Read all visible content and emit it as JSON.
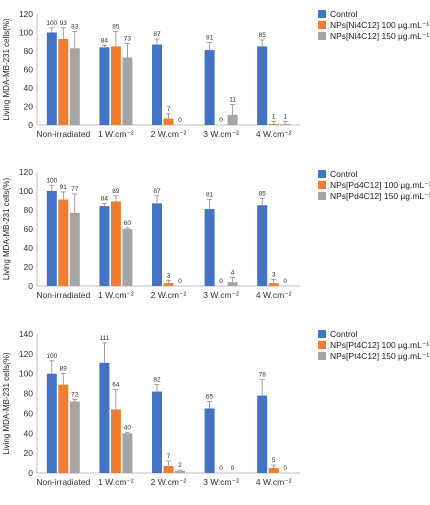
{
  "chart_data": [
    {
      "type": "bar",
      "ylabel": "Living MDA-MB-231 cells(%)",
      "ylim": [
        0,
        120
      ],
      "yticks": [
        0,
        20,
        40,
        60,
        80,
        100,
        120
      ],
      "legend_position": "right",
      "categories": [
        "Non-irradiated",
        "1 W.cm⁻²",
        "2 W.cm⁻²",
        "3 W.cm⁻²",
        "4 W.cm⁻²"
      ],
      "series": [
        {
          "name": "Control",
          "color": "#4472C4",
          "values": [
            100,
            84,
            87,
            81,
            85
          ],
          "errors": [
            5,
            2,
            6,
            8,
            7
          ]
        },
        {
          "name": "NPs[Ni4C12] 100 µg.mL⁻¹",
          "color": "#ED7D31",
          "values": [
            93,
            85,
            7,
            0,
            1
          ],
          "errors": [
            12,
            16,
            5,
            0,
            3
          ]
        },
        {
          "name": "NPs[Ni4C12] 150 µg.mL⁻¹",
          "color": "#A5A5A5",
          "values": [
            83,
            73,
            0,
            11,
            1
          ],
          "errors": [
            18,
            15,
            0,
            11,
            3
          ]
        }
      ],
      "data_labels": [
        [
          "100",
          "84",
          "87",
          "81",
          "85"
        ],
        [
          "93",
          "85",
          "7",
          "0",
          "1"
        ],
        [
          "83",
          "73",
          "0",
          "11",
          "1"
        ]
      ]
    },
    {
      "type": "bar",
      "ylabel": "Living MDA-MB-231 cells(%)",
      "ylim": [
        0,
        120
      ],
      "yticks": [
        0,
        20,
        40,
        60,
        80,
        100,
        120
      ],
      "legend_position": "right",
      "categories": [
        "Non-irradiated",
        "1 W.cm⁻²",
        "2 W.cm⁻²",
        "3 W.cm⁻²",
        "4 W.cm⁻²"
      ],
      "series": [
        {
          "name": "Control",
          "color": "#4472C4",
          "values": [
            100,
            84,
            87,
            81,
            85
          ],
          "errors": [
            6,
            3,
            8,
            10,
            7
          ]
        },
        {
          "name": "NPs[Pd4C12] 100 µg.mL⁻¹",
          "color": "#ED7D31",
          "values": [
            91,
            89,
            3,
            0,
            3
          ],
          "errors": [
            8,
            6,
            3,
            0,
            4
          ]
        },
        {
          "name": "NPs[Pd4C12] 150 µg.mL⁻¹",
          "color": "#A5A5A5",
          "values": [
            77,
            60,
            0,
            4,
            0
          ],
          "errors": [
            20,
            1,
            0,
            5,
            0
          ]
        }
      ],
      "data_labels": [
        [
          "100",
          "84",
          "87",
          "81",
          "85"
        ],
        [
          "91",
          "89",
          "3",
          "0",
          "3"
        ],
        [
          "77",
          "60",
          "0",
          "4",
          "0"
        ]
      ]
    },
    {
      "type": "bar",
      "ylabel": "Living MDA-MB-231 cells(%)",
      "ylim": [
        0,
        140
      ],
      "yticks": [
        0,
        20,
        40,
        60,
        80,
        100,
        120,
        140
      ],
      "legend_position": "right",
      "categories": [
        "Non-irradiated",
        "1 W.cm⁻²",
        "2 W.cm⁻²",
        "3 W.cm⁻²",
        "4 W.cm⁻²"
      ],
      "series": [
        {
          "name": "Control",
          "color": "#4472C4",
          "values": [
            100,
            111,
            82,
            65,
            78
          ],
          "errors": [
            13,
            20,
            7,
            7,
            16
          ]
        },
        {
          "name": "NPs[Pt4C12] 100 µg.mL⁻¹",
          "color": "#ED7D31",
          "values": [
            89,
            64,
            7,
            0,
            5
          ],
          "errors": [
            11,
            20,
            5,
            0,
            3
          ]
        },
        {
          "name": "NPs[Pt4C12] 150 µg.mL⁻¹",
          "color": "#A5A5A5",
          "values": [
            72,
            40,
            2,
            0,
            0
          ],
          "errors": [
            2,
            1,
            1,
            0,
            0
          ]
        }
      ],
      "data_labels": [
        [
          "100",
          "111",
          "82",
          "65",
          "78"
        ],
        [
          "89",
          "64",
          "7",
          "0",
          "5"
        ],
        [
          "72",
          "40",
          "2",
          "0",
          "0"
        ]
      ]
    }
  ]
}
